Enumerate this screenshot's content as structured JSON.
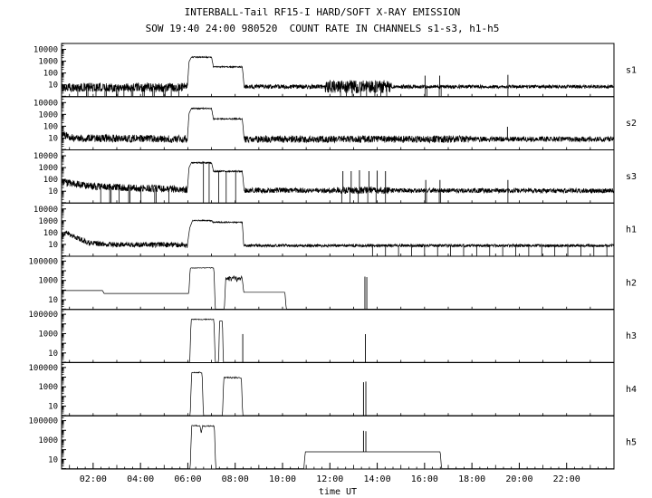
{
  "title": "INTERBALL-Tail RF15-I HARD/SOFT X-RAY EMISSION",
  "subtitle": "SOW 19:40 24:00 980520  COUNT RATE IN CHANNELS s1-s3, h1-h5",
  "colors": {
    "foreground": "#000000",
    "background": "#ffffff"
  },
  "chart_data": {
    "type": "line",
    "x_label": "time UT",
    "x_range_hours": [
      0.667,
      24
    ],
    "x_tick_hours": [
      2,
      4,
      6,
      8,
      10,
      12,
      14,
      16,
      18,
      20,
      22
    ],
    "x_tick_labels": [
      "02:00",
      "04:00",
      "06:00",
      "08:00",
      "10:00",
      "12:00",
      "14:00",
      "16:00",
      "18:00",
      "20:00",
      "22:00"
    ],
    "panel_groups": {
      "top": {
        "log_min": 0,
        "log_max": 4.5,
        "labeled_decades": [
          1,
          2,
          3,
          4
        ],
        "y_tick_labels": [
          "10",
          "100",
          "1000",
          "10000"
        ]
      },
      "bottom": {
        "log_min": 0,
        "log_max": 5.5,
        "labeled_decades": [
          1,
          3,
          5
        ],
        "y_tick_labels": [
          "10",
          "1000",
          "100000"
        ]
      }
    },
    "panels": [
      {
        "name": "s1",
        "group": "top",
        "base": [
          [
            0.67,
            6
          ],
          [
            5.98,
            6
          ],
          [
            6.05,
            900
          ],
          [
            6.15,
            2200
          ],
          [
            7.0,
            2200
          ],
          [
            7.08,
            330
          ],
          [
            8.3,
            330
          ],
          [
            8.38,
            7
          ],
          [
            24,
            7
          ]
        ],
        "noise": [
          [
            0.67,
            5.98,
            0.38
          ],
          [
            6.15,
            8.3,
            0.05
          ],
          [
            8.38,
            11.8,
            0.18
          ],
          [
            11.8,
            14.6,
            0.55
          ],
          [
            14.6,
            24,
            0.15
          ]
        ],
        "drops": [
          1.35,
          1.72,
          1.78,
          2.12,
          2.5,
          2.56,
          2.98,
          3.04,
          3.3,
          3.62,
          3.68,
          4.1,
          4.16,
          4.52,
          4.58,
          4.98,
          5.04,
          5.3,
          5.62,
          12.45,
          12.7,
          12.95,
          13.3,
          13.55,
          13.9,
          14.15,
          14.4,
          16.02,
          16.1,
          16.62,
          16.7,
          19.52
        ],
        "spikes": [
          [
            16.02,
            60
          ],
          [
            16.64,
            60
          ],
          [
            19.52,
            70
          ]
        ]
      },
      {
        "name": "s2",
        "group": "top",
        "base": [
          [
            0.67,
            20
          ],
          [
            1.2,
            10
          ],
          [
            5.98,
            8
          ],
          [
            6.05,
            1200
          ],
          [
            6.15,
            3200
          ],
          [
            7.0,
            3200
          ],
          [
            7.08,
            420
          ],
          [
            8.3,
            420
          ],
          [
            8.38,
            8
          ],
          [
            24,
            8
          ]
        ],
        "noise": [
          [
            0.67,
            5.98,
            0.32
          ],
          [
            6.15,
            8.3,
            0.05
          ],
          [
            8.38,
            18.0,
            0.3
          ],
          [
            18.0,
            24,
            0.22
          ]
        ],
        "drops": [],
        "spikes": [
          [
            19.5,
            90
          ]
        ]
      },
      {
        "name": "s3",
        "group": "top",
        "base": [
          [
            0.67,
            60
          ],
          [
            2.0,
            25
          ],
          [
            5.98,
            14
          ],
          [
            6.05,
            1000
          ],
          [
            6.15,
            2600
          ],
          [
            7.0,
            2600
          ],
          [
            7.08,
            480
          ],
          [
            8.3,
            480
          ],
          [
            8.38,
            12
          ],
          [
            24,
            11
          ]
        ],
        "noise": [
          [
            0.67,
            5.98,
            0.3
          ],
          [
            6.15,
            8.3,
            0.06
          ],
          [
            8.38,
            12.3,
            0.22
          ],
          [
            12.3,
            14.6,
            0.3
          ],
          [
            14.6,
            24,
            0.2
          ]
        ],
        "drops": [
          2.32,
          2.7,
          2.76,
          3.1,
          3.5,
          3.56,
          4.02,
          4.6,
          4.66,
          5.2,
          6.66,
          6.9,
          7.3,
          7.62,
          8.02,
          12.5,
          12.85,
          13.2,
          13.6,
          13.95,
          14.35,
          16.02,
          16.08,
          16.62,
          16.68,
          19.52
        ],
        "spikes": [
          [
            12.55,
            500
          ],
          [
            12.9,
            500
          ],
          [
            13.25,
            600
          ],
          [
            13.65,
            500
          ],
          [
            14.0,
            550
          ],
          [
            14.35,
            500
          ],
          [
            16.05,
            90
          ],
          [
            16.65,
            90
          ],
          [
            19.52,
            90
          ]
        ]
      },
      {
        "name": "h1",
        "group": "top",
        "base": [
          [
            0.67,
            25
          ],
          [
            0.85,
            110
          ],
          [
            1.1,
            55
          ],
          [
            1.8,
            14
          ],
          [
            2.5,
            10
          ],
          [
            5.98,
            9
          ],
          [
            6.08,
            250
          ],
          [
            6.2,
            1050
          ],
          [
            7.0,
            1050
          ],
          [
            7.06,
            750
          ],
          [
            8.3,
            750
          ],
          [
            8.36,
            8
          ],
          [
            24,
            8
          ]
        ],
        "noise": [
          [
            0.67,
            5.98,
            0.22
          ],
          [
            6.2,
            8.3,
            0.05
          ],
          [
            8.36,
            24,
            0.12
          ]
        ],
        "drops": [
          13.8,
          14.35,
          14.9,
          15.45,
          16.0,
          16.55,
          17.1,
          17.65,
          18.2,
          18.75,
          19.3,
          19.85,
          20.4,
          20.95,
          21.5,
          22.05,
          22.6,
          23.15,
          23.7
        ],
        "spikes": []
      },
      {
        "name": "h2",
        "group": "bottom",
        "base": [
          [
            0.67,
            90
          ],
          [
            2.4,
            90
          ],
          [
            2.46,
            45
          ],
          [
            6.04,
            45
          ],
          [
            6.1,
            18000
          ],
          [
            6.55,
            20000
          ],
          [
            7.1,
            20000
          ],
          [
            7.16,
            1
          ],
          [
            7.54,
            1
          ],
          [
            7.6,
            1400
          ],
          [
            8.3,
            1400
          ],
          [
            8.36,
            60
          ],
          [
            10.1,
            60
          ],
          [
            10.16,
            1
          ],
          [
            24,
            1
          ]
        ],
        "noise": [
          [
            6.1,
            7.1,
            0.04
          ],
          [
            7.6,
            8.3,
            0.3
          ]
        ],
        "drops": [],
        "spikes": [
          [
            13.48,
            2500
          ],
          [
            13.56,
            2200
          ]
        ]
      },
      {
        "name": "h3",
        "group": "bottom",
        "base": [
          [
            0.67,
            1
          ],
          [
            6.08,
            1
          ],
          [
            6.14,
            30000
          ],
          [
            7.1,
            30000
          ],
          [
            7.16,
            1
          ],
          [
            7.3,
            1
          ],
          [
            7.34,
            20000
          ],
          [
            7.46,
            20000
          ],
          [
            7.5,
            1
          ],
          [
            24,
            1
          ]
        ],
        "noise": [
          [
            6.14,
            7.1,
            0.05
          ]
        ],
        "drops": [],
        "spikes": [
          [
            8.32,
            900
          ],
          [
            13.5,
            900
          ]
        ]
      },
      {
        "name": "h4",
        "group": "bottom",
        "base": [
          [
            0.67,
            1
          ],
          [
            6.1,
            1
          ],
          [
            6.16,
            30000
          ],
          [
            6.6,
            30000
          ],
          [
            6.66,
            1
          ],
          [
            7.46,
            1
          ],
          [
            7.52,
            9000
          ],
          [
            8.26,
            9000
          ],
          [
            8.32,
            1
          ],
          [
            24,
            1
          ]
        ],
        "noise": [
          [
            6.16,
            6.6,
            0.05
          ],
          [
            7.52,
            8.26,
            0.08
          ]
        ],
        "drops": [],
        "spikes": [
          [
            13.42,
            3000
          ],
          [
            13.52,
            3500
          ]
        ]
      },
      {
        "name": "h5",
        "group": "bottom",
        "base": [
          [
            0.67,
            1
          ],
          [
            6.1,
            1
          ],
          [
            6.16,
            30000
          ],
          [
            6.52,
            30000
          ],
          [
            6.56,
            5000
          ],
          [
            6.62,
            28000
          ],
          [
            7.12,
            28000
          ],
          [
            7.18,
            1
          ],
          [
            10.9,
            1
          ],
          [
            10.96,
            60
          ],
          [
            16.66,
            60
          ],
          [
            16.72,
            1
          ],
          [
            24,
            1
          ]
        ],
        "noise": [
          [
            6.16,
            7.12,
            0.06
          ]
        ],
        "drops": [],
        "spikes": [
          [
            13.42,
            9000
          ],
          [
            13.52,
            8000
          ]
        ]
      }
    ]
  }
}
